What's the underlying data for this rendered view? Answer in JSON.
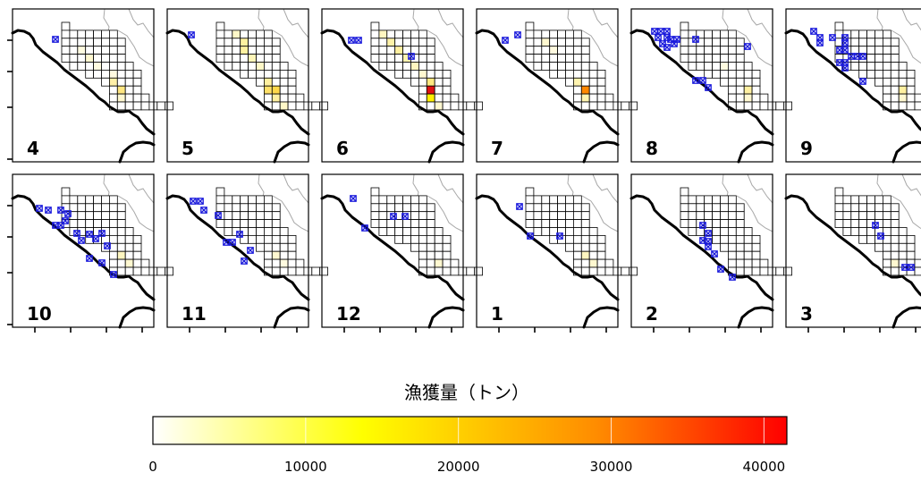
{
  "chart_data": {
    "type": "heatmap",
    "legend": {
      "title": "漁獲量（トン）",
      "ticks": [
        {
          "value": 0,
          "label": "0"
        },
        {
          "value": 10000,
          "label": "10000"
        },
        {
          "value": 20000,
          "label": "20000"
        },
        {
          "value": 30000,
          "label": "30000"
        },
        {
          "value": 40000,
          "label": "40000"
        }
      ],
      "range": [
        0,
        41500
      ],
      "colors": [
        "#ffffff",
        "#ffff00",
        "#ff8c00",
        "#ff0000"
      ]
    },
    "panels": [
      {
        "month": "4"
      },
      {
        "month": "5"
      },
      {
        "month": "6"
      },
      {
        "month": "7"
      },
      {
        "month": "8"
      },
      {
        "month": "9"
      },
      {
        "month": "10"
      },
      {
        "month": "11"
      },
      {
        "month": "12"
      },
      {
        "month": "1"
      },
      {
        "month": "2"
      },
      {
        "month": "3"
      }
    ]
  }
}
